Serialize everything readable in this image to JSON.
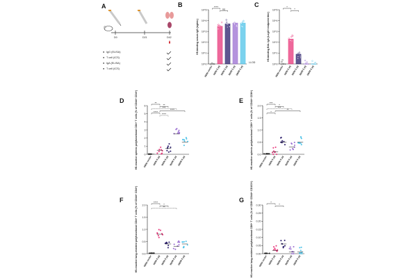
{
  "colors": {
    "vector": "#333333",
    "ih5n_5": "#e8357a",
    "ih6n_5": "#2b1f6b",
    "ih5n8_5": "#9b6fd1",
    "ih6n8_5": "#4fc3e8",
    "bracket": "#222222"
  },
  "panelA": {
    "label": "A",
    "timepoints": [
      "D0",
      "D21",
      "D42"
    ],
    "legend": [
      "IgG (ELISA)",
      "T cell (ICS)",
      "IgA (ELISA)",
      "T cell (ICS)"
    ]
  },
  "chart_data": [
    {
      "panel": "B",
      "type": "bar",
      "ylabel": "H5-binding serum IgG (ng/mL)",
      "yscale": "log",
      "ylim": [
        1,
        100000
      ],
      "yticks": [
        "10^0",
        "10^1",
        "10^2",
        "10^3",
        "10^4",
        "10^5"
      ],
      "categories": [
        "IN/IN vector",
        "IN/IN 5 µg",
        "IM/IN 5 µg",
        "IN/IM 5 µg",
        "IM/IM 5 µg"
      ],
      "values": [
        1,
        3000,
        5000,
        6000,
        6000
      ],
      "lod_label": "LLOD",
      "significance": [
        "****",
        "ns"
      ]
    },
    {
      "panel": "C",
      "type": "bar",
      "ylabel": "H5-binding BAL IgA (Log10 endpoint titer)",
      "yscale": "log",
      "ylim": [
        1,
        100000
      ],
      "yticks": [
        "10^0",
        "10^1",
        "10^2",
        "10^3",
        "10^4",
        "10^5"
      ],
      "categories": [
        "IN/IN vector",
        "IN/IN 5 µg",
        "IM/IN 5 µg",
        "IN/IM 5 µg",
        "IM/IM 5 µg"
      ],
      "values": [
        1,
        200,
        8,
        1,
        1
      ],
      "significance": [
        "*",
        "*"
      ]
    },
    {
      "panel": "D",
      "type": "scatter",
      "ylabel": "H5-reactive splenic polyfunctional CD4+ T cells (% of CD44+ CD4+)",
      "ylim": [
        0,
        6
      ],
      "yticks": [
        "0",
        "1",
        "2",
        "3",
        "4",
        "5",
        "6"
      ],
      "categories": [
        "IN/IN vector",
        "IN/IN 5 µg",
        "IM/IN 5 µg",
        "IN/IM 5 µg",
        "IM/IM 5 µg"
      ],
      "values": [
        0.02,
        0.5,
        0.7,
        2.5,
        1.5
      ],
      "significance": [
        "**",
        "**",
        "***",
        "****",
        "****",
        "****"
      ]
    },
    {
      "panel": "E",
      "type": "scatter",
      "ylabel": "H5-reactive splenic polyfunctional CD8+ T cells (% of CD44+ CD8+)",
      "ylim": [
        0,
        2.0
      ],
      "yticks": [
        "0.0",
        "0.5",
        "1.0",
        "1.5",
        "2.0"
      ],
      "categories": [
        "IN/IN vector",
        "IN/IN 5 µg",
        "IM/IN 5 µg",
        "IN/IM 5 µg",
        "IM/IM 5 µg"
      ],
      "values": [
        0.02,
        0.1,
        0.5,
        0.3,
        0.5
      ],
      "significance": [
        "***",
        "*",
        "***",
        "**",
        "*"
      ]
    },
    {
      "panel": "F",
      "type": "scatter",
      "ylabel": "H5-reactive lung-resident polyfunctional CD4+ T cells (% of CD44+ CD4+)",
      "ylim": [
        0,
        2.0
      ],
      "yticks": [
        "0.0",
        "0.5",
        "1.0",
        "1.5",
        "2.0"
      ],
      "categories": [
        "IN/IN vector",
        "IN/IN 5 µg",
        "IM/IN 5 µg",
        "IN/IM 5 µg",
        "IM/IM 5 µg"
      ],
      "values": [
        0.02,
        0.8,
        0.4,
        0.3,
        0.4
      ],
      "significance": [
        "****",
        "*",
        "**"
      ]
    },
    {
      "panel": "G",
      "type": "scatter",
      "ylabel": "H5-reactive lung-resident polyfunctional CD8+ T cells (% of CD8+ CD44+ CD103+)",
      "ylim": [
        0,
        0.3
      ],
      "yticks": [
        "0.00",
        "0.05",
        "0.10",
        "0.15",
        "0.20",
        "0.25",
        "0.30"
      ],
      "categories": [
        "IN/IN vector",
        "IN/IN 5 µg",
        "IM/IN 5 µg",
        "IN/IM 5 µg",
        "IM/IM 5 µg"
      ],
      "values": [
        0.002,
        0.02,
        0.06,
        0.01,
        0.01
      ],
      "significance": [
        "*",
        "*"
      ]
    }
  ]
}
